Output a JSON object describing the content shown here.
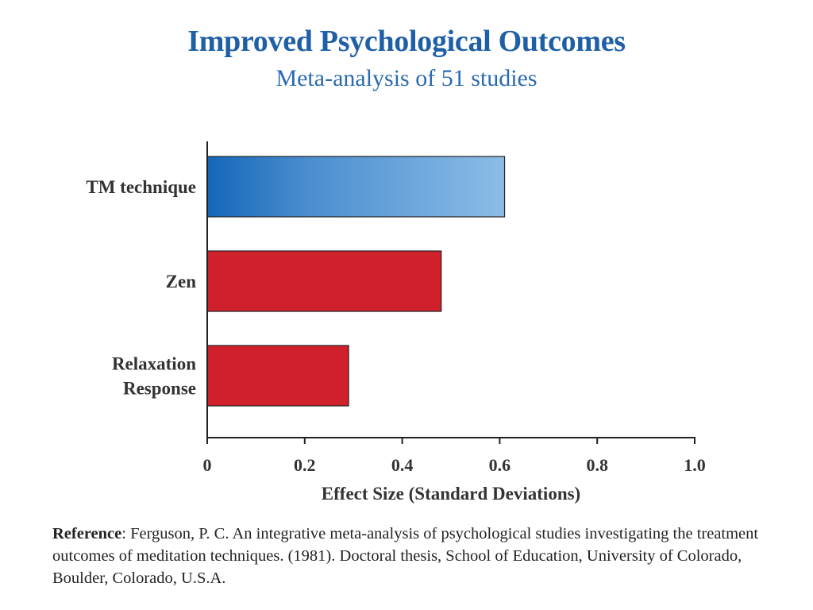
{
  "header": {
    "title": "Improved Psychological Outcomes",
    "subtitle": "Meta-analysis of 51 studies"
  },
  "chart_data": {
    "type": "bar",
    "orientation": "horizontal",
    "categories": [
      "TM technique",
      "Zen",
      "Relaxation Response"
    ],
    "category_lines": [
      [
        "TM technique"
      ],
      [
        "Zen"
      ],
      [
        "Relaxation",
        "Response"
      ]
    ],
    "values": [
      0.61,
      0.48,
      0.29
    ],
    "colors": [
      "#3a86c8",
      "#d0202c",
      "#d0202c"
    ],
    "xlabel": "Effect Size (Standard Deviations)",
    "ylabel": "",
    "xlim": [
      0,
      1.0
    ],
    "ticks": [
      "0",
      "0.2",
      "0.4",
      "0.6",
      "0.8",
      "1.0"
    ],
    "grid": false
  },
  "reference": {
    "label": "Reference",
    "text": ": Ferguson, P. C. An integrative meta-analysis of psychological studies investigating the treatment outcomes of meditation techniques. (1981). Doctoral thesis, School of Education, University of Colorado, Boulder, Colorado, U.S.A."
  }
}
